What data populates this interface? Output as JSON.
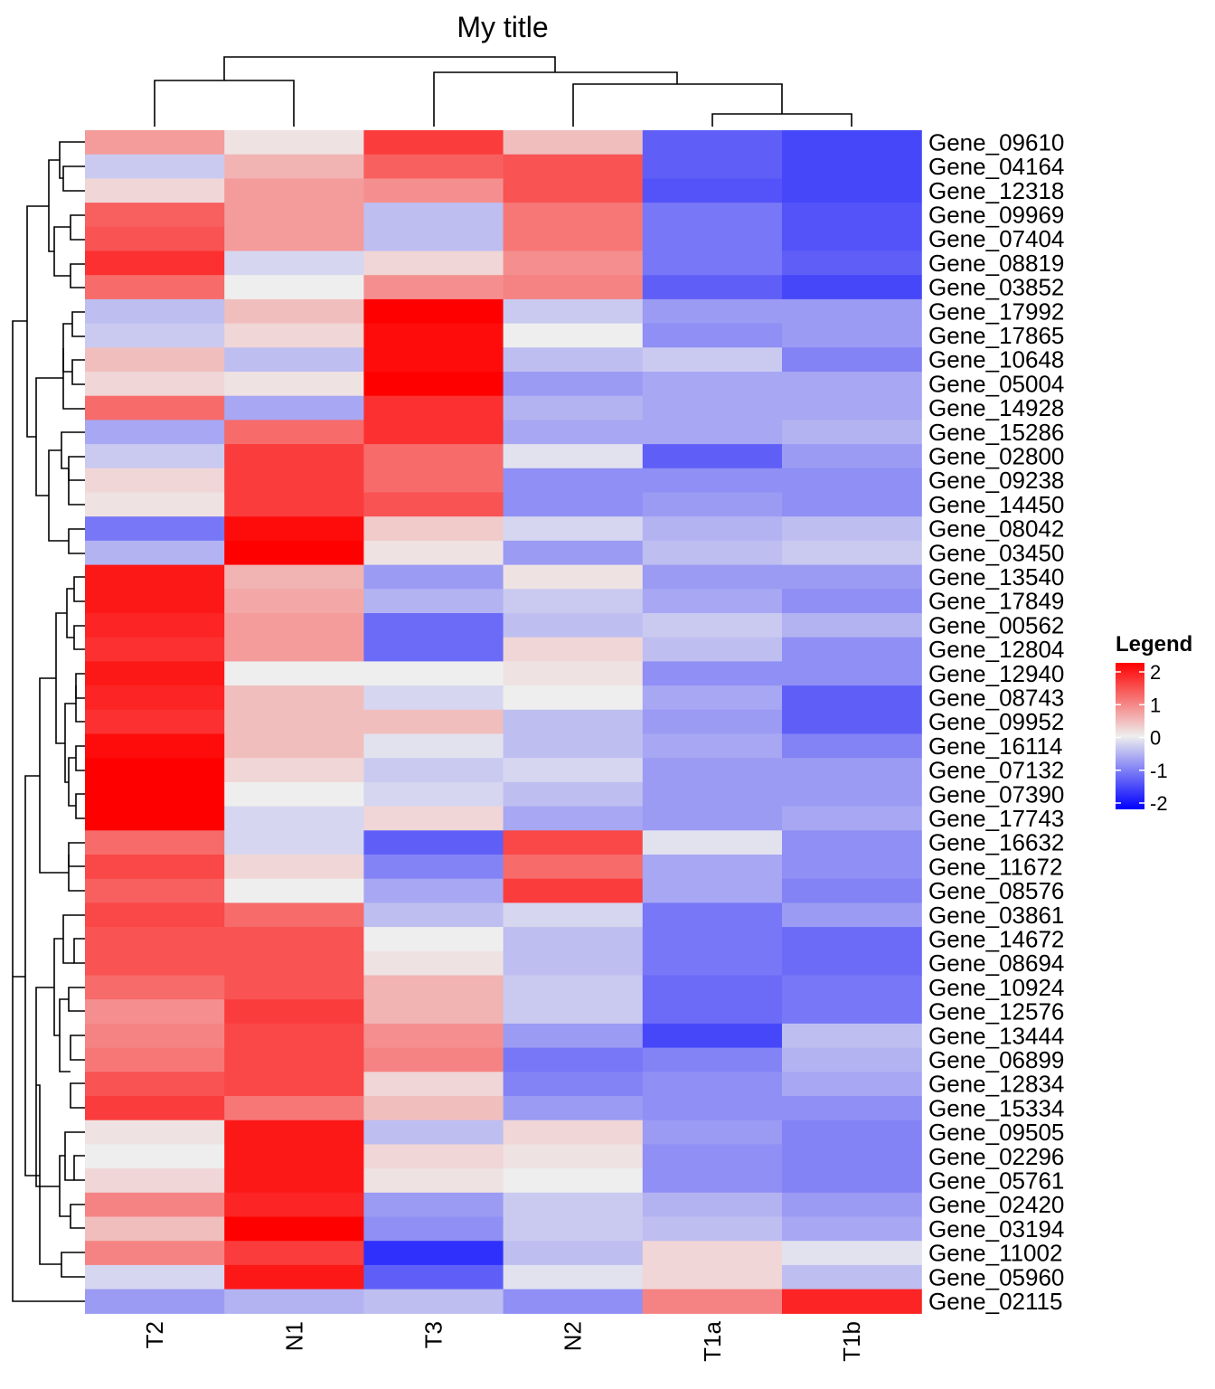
{
  "chart_data": {
    "type": "heatmap",
    "title": "My title",
    "columns": [
      "T2",
      "N1",
      "T3",
      "N2",
      "T1a",
      "T1b"
    ],
    "rows": [
      "Gene_09610",
      "Gene_04164",
      "Gene_12318",
      "Gene_09969",
      "Gene_07404",
      "Gene_08819",
      "Gene_03852",
      "Gene_17992",
      "Gene_17865",
      "Gene_10648",
      "Gene_05004",
      "Gene_14928",
      "Gene_15286",
      "Gene_02800",
      "Gene_09238",
      "Gene_14450",
      "Gene_08042",
      "Gene_03450",
      "Gene_13540",
      "Gene_17849",
      "Gene_00562",
      "Gene_12804",
      "Gene_12940",
      "Gene_08743",
      "Gene_09952",
      "Gene_16114",
      "Gene_07132",
      "Gene_07390",
      "Gene_17743",
      "Gene_16632",
      "Gene_11672",
      "Gene_08576",
      "Gene_03861",
      "Gene_14672",
      "Gene_08694",
      "Gene_10924",
      "Gene_12576",
      "Gene_13444",
      "Gene_06899",
      "Gene_12834",
      "Gene_15334",
      "Gene_09505",
      "Gene_02296",
      "Gene_05761",
      "Gene_02420",
      "Gene_03194",
      "Gene_11002",
      "Gene_05960",
      "Gene_02115"
    ],
    "values": [
      [
        0.7,
        0.1,
        1.5,
        0.4,
        -1.2,
        -1.4
      ],
      [
        -0.3,
        0.5,
        1.2,
        1.3,
        -1.2,
        -1.4
      ],
      [
        0.2,
        0.7,
        0.8,
        1.3,
        -1.3,
        -1.4
      ],
      [
        1.2,
        0.7,
        -0.4,
        1.0,
        -1.0,
        -1.3
      ],
      [
        1.3,
        0.7,
        -0.4,
        1.0,
        -1.0,
        -1.3
      ],
      [
        1.6,
        -0.2,
        0.2,
        0.8,
        -1.0,
        -1.2
      ],
      [
        1.1,
        0.0,
        0.8,
        0.9,
        -1.2,
        -1.4
      ],
      [
        -0.4,
        0.4,
        2.0,
        -0.3,
        -0.7,
        -0.7
      ],
      [
        -0.3,
        0.2,
        1.9,
        0.0,
        -0.8,
        -0.7
      ],
      [
        0.4,
        -0.4,
        1.9,
        -0.4,
        -0.3,
        -0.9
      ],
      [
        0.2,
        0.1,
        2.0,
        -0.7,
        -0.6,
        -0.6
      ],
      [
        1.1,
        -0.6,
        1.6,
        -0.5,
        -0.6,
        -0.6
      ],
      [
        -0.6,
        1.1,
        1.6,
        -0.6,
        -0.6,
        -0.5
      ],
      [
        -0.3,
        1.5,
        1.1,
        -0.1,
        -1.2,
        -0.7
      ],
      [
        0.2,
        1.5,
        1.1,
        -0.8,
        -0.8,
        -0.8
      ],
      [
        0.1,
        1.5,
        1.3,
        -0.8,
        -0.7,
        -0.8
      ],
      [
        -1.0,
        1.9,
        0.3,
        -0.2,
        -0.5,
        -0.4
      ],
      [
        -0.5,
        2.0,
        0.1,
        -0.7,
        -0.4,
        -0.3
      ],
      [
        1.8,
        0.5,
        -0.7,
        0.1,
        -0.7,
        -0.7
      ],
      [
        1.8,
        0.6,
        -0.5,
        -0.3,
        -0.6,
        -0.8
      ],
      [
        1.7,
        0.7,
        -1.1,
        -0.4,
        -0.3,
        -0.5
      ],
      [
        1.6,
        0.7,
        -1.1,
        0.2,
        -0.4,
        -0.8
      ],
      [
        1.8,
        0.0,
        0.0,
        0.1,
        -0.8,
        -0.8
      ],
      [
        1.7,
        0.4,
        -0.2,
        0.0,
        -0.6,
        -1.2
      ],
      [
        1.6,
        0.4,
        0.4,
        -0.4,
        -0.7,
        -1.2
      ],
      [
        1.9,
        0.4,
        -0.1,
        -0.4,
        -0.6,
        -0.9
      ],
      [
        2.0,
        0.2,
        -0.3,
        -0.2,
        -0.7,
        -0.7
      ],
      [
        2.0,
        0.0,
        -0.2,
        -0.4,
        -0.7,
        -0.7
      ],
      [
        2.0,
        -0.2,
        0.2,
        -0.6,
        -0.7,
        -0.6
      ],
      [
        1.1,
        -0.2,
        -1.2,
        1.4,
        -0.1,
        -0.8
      ],
      [
        1.4,
        0.2,
        -0.9,
        1.1,
        -0.6,
        -0.8
      ],
      [
        1.2,
        0.0,
        -0.6,
        1.5,
        -0.6,
        -0.9
      ],
      [
        1.4,
        1.1,
        -0.4,
        -0.2,
        -1.0,
        -0.7
      ],
      [
        1.3,
        1.3,
        0.0,
        -0.4,
        -1.0,
        -1.1
      ],
      [
        1.3,
        1.3,
        0.1,
        -0.4,
        -1.0,
        -1.1
      ],
      [
        1.1,
        1.3,
        0.5,
        -0.3,
        -1.1,
        -1.0
      ],
      [
        0.8,
        1.5,
        0.5,
        -0.3,
        -1.1,
        -1.0
      ],
      [
        0.9,
        1.4,
        0.8,
        -0.7,
        -1.4,
        -0.4
      ],
      [
        1.0,
        1.4,
        0.9,
        -1.0,
        -0.9,
        -0.5
      ],
      [
        1.3,
        1.4,
        0.2,
        -0.9,
        -0.8,
        -0.6
      ],
      [
        1.5,
        1.0,
        0.4,
        -0.7,
        -0.8,
        -0.8
      ],
      [
        0.1,
        1.8,
        -0.4,
        0.2,
        -0.7,
        -0.9
      ],
      [
        0.0,
        1.8,
        0.2,
        0.1,
        -0.8,
        -0.9
      ],
      [
        0.2,
        1.8,
        0.1,
        0.0,
        -0.8,
        -0.9
      ],
      [
        0.9,
        1.7,
        -0.7,
        -0.3,
        -0.5,
        -0.7
      ],
      [
        0.4,
        2.0,
        -0.8,
        -0.3,
        -0.4,
        -0.6
      ],
      [
        0.9,
        1.5,
        -1.6,
        -0.4,
        0.2,
        -0.1
      ],
      [
        -0.2,
        1.8,
        -1.2,
        -0.1,
        0.2,
        -0.4
      ],
      [
        -0.7,
        -0.5,
        -0.4,
        -0.8,
        0.9,
        1.7
      ]
    ],
    "legend": {
      "title": "Legend",
      "ticks": [
        2,
        1,
        0,
        -1,
        -2
      ],
      "tick_labels": [
        "2",
        "1",
        "0",
        "-1",
        "-2"
      ]
    },
    "colors": {
      "low": "#0000ff",
      "mid": "#eeeeee",
      "high": "#ff0000"
    },
    "range": [
      -2,
      2
    ],
    "row_dendrogram": true,
    "column_dendrogram": true
  }
}
